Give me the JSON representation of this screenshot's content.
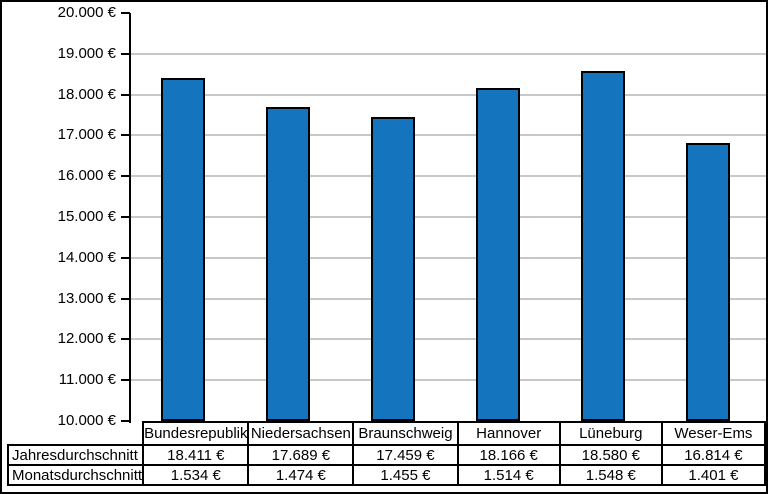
{
  "chart_data": {
    "type": "bar",
    "title": "",
    "xlabel": "",
    "ylabel": "",
    "categories": [
      "Bundesrepublik",
      "Niedersachsen",
      "Braunschweig",
      "Hannover",
      "Lüneburg",
      "Weser-Ems"
    ],
    "series": [
      {
        "name": "Jahresdurchschnitt",
        "values": [
          18411,
          17689,
          17459,
          18166,
          18580,
          16814
        ]
      },
      {
        "name": "Monatsdurchschnitt",
        "values": [
          1534,
          1474,
          1455,
          1514,
          1548,
          1401
        ]
      }
    ],
    "plotted_series": "Jahresdurchschnitt",
    "ylim": [
      10000,
      20000
    ],
    "ytick_step": 1000,
    "ytick_labels": [
      "20.000 €",
      "19.000 €",
      "18.000 €",
      "17.000 €",
      "16.000 €",
      "15.000 €",
      "14.000 €",
      "13.000 €",
      "12.000 €",
      "11.000 €",
      "10.000 €"
    ],
    "grid": true,
    "legend": false,
    "bar_color": "#1475BE",
    "bar_border_color": "#000000",
    "grid_color": "#c8c8c8"
  },
  "table": {
    "rows": [
      {
        "label": "Jahresdurchschnitt",
        "values": [
          "18.411 €",
          "17.689 €",
          "17.459 €",
          "18.166 €",
          "18.580 €",
          "16.814 €"
        ]
      },
      {
        "label": "Monatsdurchschnitt",
        "values": [
          "1.534 €",
          "1.474 €",
          "1.455 €",
          "1.514 €",
          "1.548 €",
          "1.401 €"
        ]
      }
    ]
  }
}
